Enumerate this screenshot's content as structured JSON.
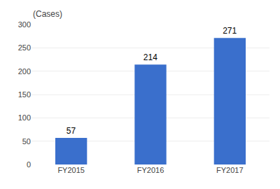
{
  "chart_data": {
    "type": "bar",
    "ylabel": "(Cases)",
    "categories": [
      "FY2015",
      "FY2016",
      "FY2017"
    ],
    "values": [
      57,
      214,
      271
    ],
    "color": "#3a6fcc",
    "ylim": [
      0,
      300
    ],
    "yticks": [
      0,
      50,
      100,
      150,
      200,
      250,
      300
    ],
    "grid": true,
    "data_labels": true
  }
}
